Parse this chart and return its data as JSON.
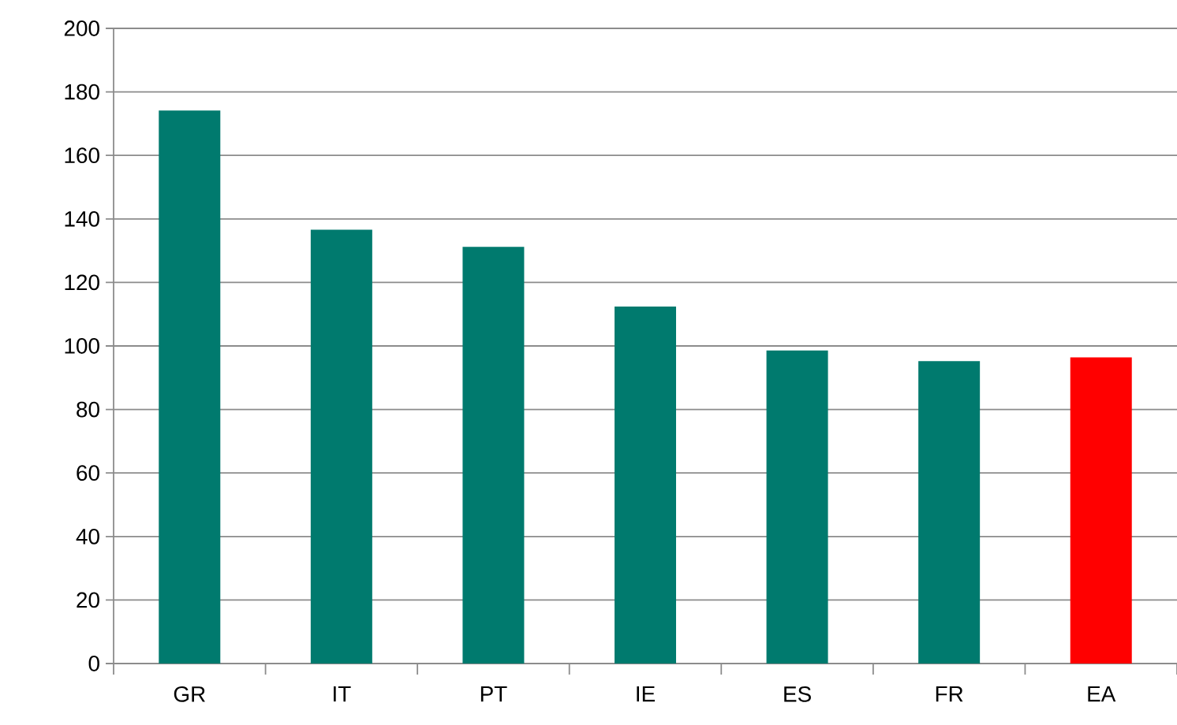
{
  "chart_data": {
    "type": "bar",
    "categories": [
      "GR",
      "IT",
      "PT",
      "IE",
      "ES",
      "FR",
      "EA"
    ],
    "values": [
      174.1,
      136.6,
      131.2,
      112.4,
      98.6,
      95.2,
      96.4
    ],
    "colors": [
      "#007a6e",
      "#007a6e",
      "#007a6e",
      "#007a6e",
      "#007a6e",
      "#007a6e",
      "#ff0000"
    ],
    "ylim": [
      0,
      200
    ],
    "yticks": [
      0,
      20,
      40,
      60,
      80,
      100,
      120,
      140,
      160,
      180,
      200
    ],
    "grid": "y"
  }
}
